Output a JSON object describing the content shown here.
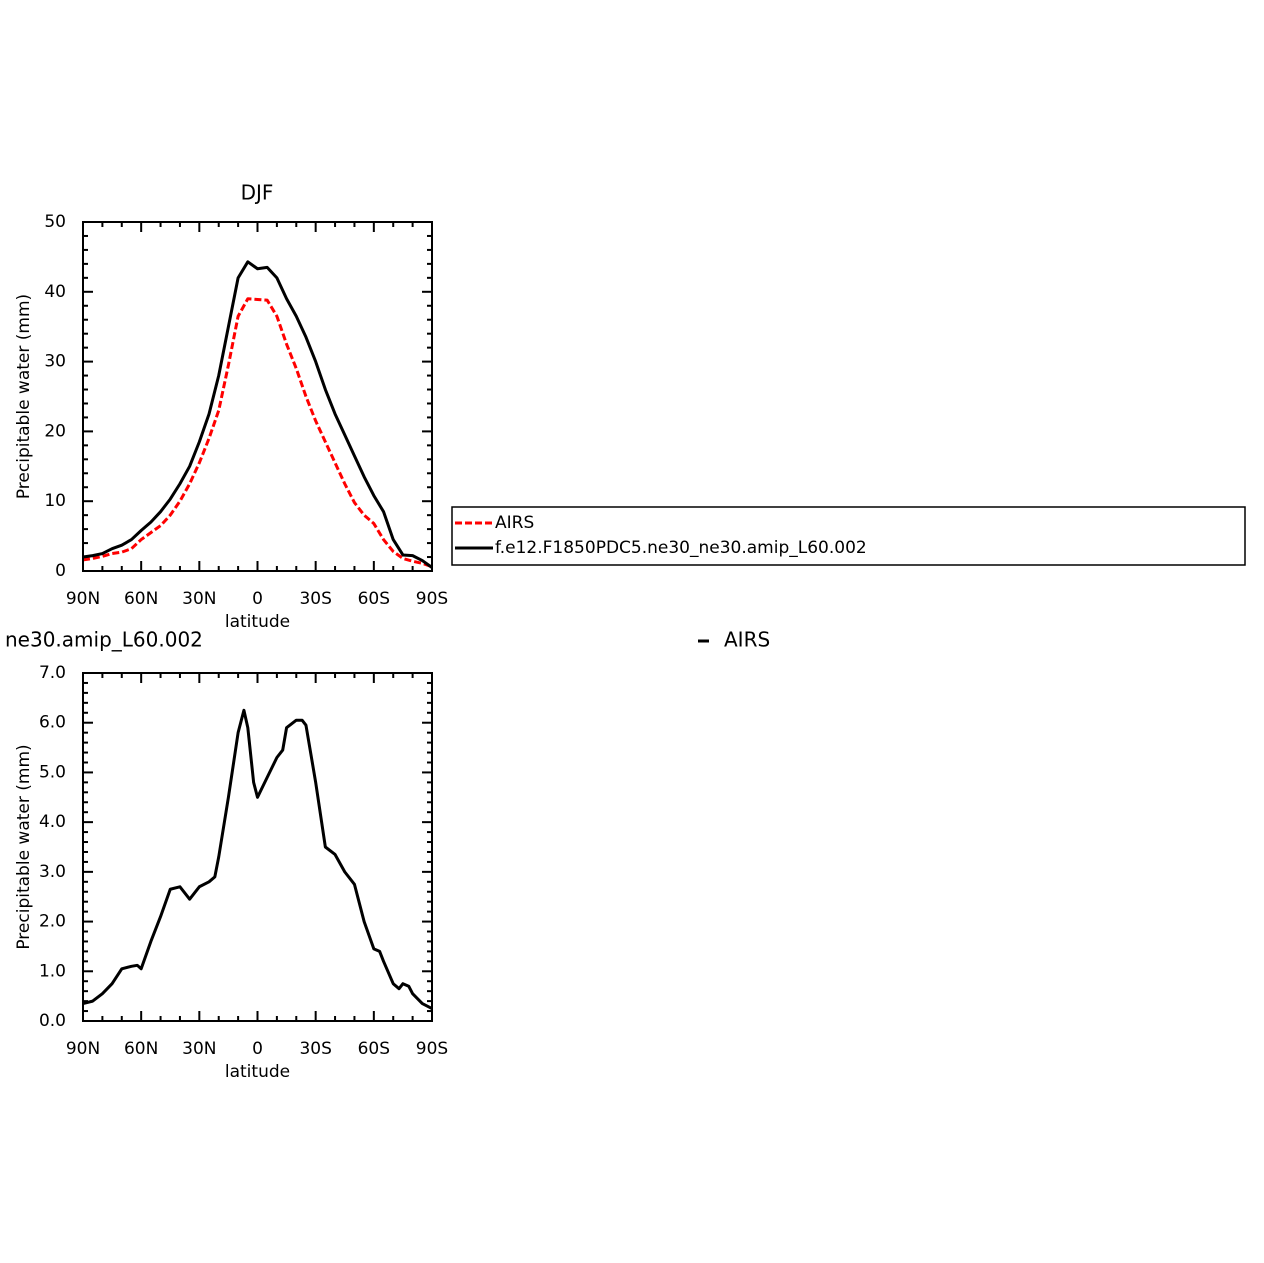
{
  "chart_data": [
    {
      "type": "line",
      "title": "DJF",
      "xlabel": "latitude",
      "ylabel": "Precipitable water (mm)",
      "x": [
        90,
        85,
        80,
        75,
        70,
        65,
        60,
        55,
        50,
        45,
        40,
        35,
        30,
        25,
        20,
        15,
        10,
        5,
        0,
        -5,
        -10,
        -15,
        -20,
        -25,
        -30,
        -35,
        -40,
        -45,
        -50,
        -55,
        -60,
        -65,
        -70,
        -75,
        -80,
        -85,
        -90
      ],
      "series": [
        {
          "name": "AIRS",
          "color": "#ff0000",
          "dashed": true,
          "values": [
            1.6,
            1.8,
            2.1,
            2.5,
            2.7,
            3.2,
            4.5,
            5.5,
            6.5,
            8.0,
            10.0,
            12.5,
            15.5,
            19.0,
            23.0,
            29.5,
            36.5,
            39.0,
            38.9,
            38.8,
            36.5,
            32.5,
            29.0,
            25.0,
            21.5,
            18.5,
            15.5,
            12.5,
            9.8,
            8.0,
            6.8,
            4.5,
            2.8,
            1.8,
            1.4,
            1.1,
            0.6
          ]
        },
        {
          "name": "f.e12.F1850PDC5.ne30_ne30.amip_L60.002",
          "color": "#000000",
          "dashed": false,
          "values": [
            2.0,
            2.2,
            2.5,
            3.2,
            3.7,
            4.5,
            5.8,
            7.0,
            8.5,
            10.3,
            12.5,
            15.0,
            18.5,
            22.5,
            28.0,
            35.0,
            42.0,
            44.3,
            43.3,
            43.5,
            42.0,
            39.0,
            36.5,
            33.5,
            30.0,
            26.0,
            22.5,
            19.5,
            16.5,
            13.5,
            10.8,
            8.5,
            4.5,
            2.3,
            2.2,
            1.5,
            0.5
          ]
        }
      ],
      "xlim": [
        90,
        -90
      ],
      "xticks": [
        {
          "value": 90,
          "label": "90N"
        },
        {
          "value": 60,
          "label": "60N"
        },
        {
          "value": 30,
          "label": "30N"
        },
        0,
        {
          "value": -30,
          "label": "30S"
        },
        {
          "value": -60,
          "label": "60S"
        },
        {
          "value": -90,
          "label": "90S"
        }
      ],
      "ylim": [
        0,
        50
      ],
      "yticks": [
        0,
        10,
        20,
        30,
        40,
        50
      ]
    },
    {
      "type": "line",
      "title": "ne30.amip_L60.002",
      "xlabel": "latitude",
      "ylabel": "Precipitable water (mm)",
      "x": [
        90,
        85,
        80,
        75,
        70,
        65,
        62,
        60,
        55,
        50,
        45,
        40,
        35,
        30,
        25,
        22,
        20,
        15,
        10,
        7,
        5,
        2,
        0,
        -5,
        -10,
        -13,
        -15,
        -20,
        -23,
        -25,
        -30,
        -35,
        -40,
        -45,
        -50,
        -55,
        -60,
        -63,
        -65,
        -70,
        -73,
        -75,
        -78,
        -80,
        -85,
        -90
      ],
      "series": [
        {
          "name": "AIRS",
          "color": "#000000",
          "dashed": false,
          "values": [
            0.35,
            0.4,
            0.55,
            0.75,
            1.05,
            1.1,
            1.12,
            1.05,
            1.6,
            2.1,
            2.65,
            2.7,
            2.45,
            2.7,
            2.8,
            2.9,
            3.3,
            4.5,
            5.8,
            6.25,
            5.9,
            4.8,
            4.5,
            4.9,
            5.3,
            5.45,
            5.9,
            6.05,
            6.05,
            5.95,
            4.8,
            3.5,
            3.35,
            3.0,
            2.75,
            2.0,
            1.45,
            1.4,
            1.2,
            0.75,
            0.65,
            0.75,
            0.7,
            0.55,
            0.35,
            0.25
          ]
        }
      ],
      "xlim": [
        90,
        -90
      ],
      "xticks": [
        {
          "value": 90,
          "label": "90N"
        },
        {
          "value": 60,
          "label": "60N"
        },
        {
          "value": 30,
          "label": "30N"
        },
        0,
        {
          "value": -30,
          "label": "30S"
        },
        {
          "value": -60,
          "label": "60S"
        },
        {
          "value": -90,
          "label": "90S"
        }
      ],
      "ylim": [
        0,
        7
      ],
      "yticks": [
        {
          "value": 0,
          "label": "0.0"
        },
        {
          "value": 1,
          "label": "1.0"
        },
        {
          "value": 2,
          "label": "2.0"
        },
        {
          "value": 3,
          "label": "3.0"
        },
        {
          "value": 4,
          "label": "4.0"
        },
        {
          "value": 5,
          "label": "5.0"
        },
        {
          "value": 6,
          "label": "6.0"
        },
        {
          "value": 7,
          "label": "7.0"
        }
      ]
    }
  ]
}
